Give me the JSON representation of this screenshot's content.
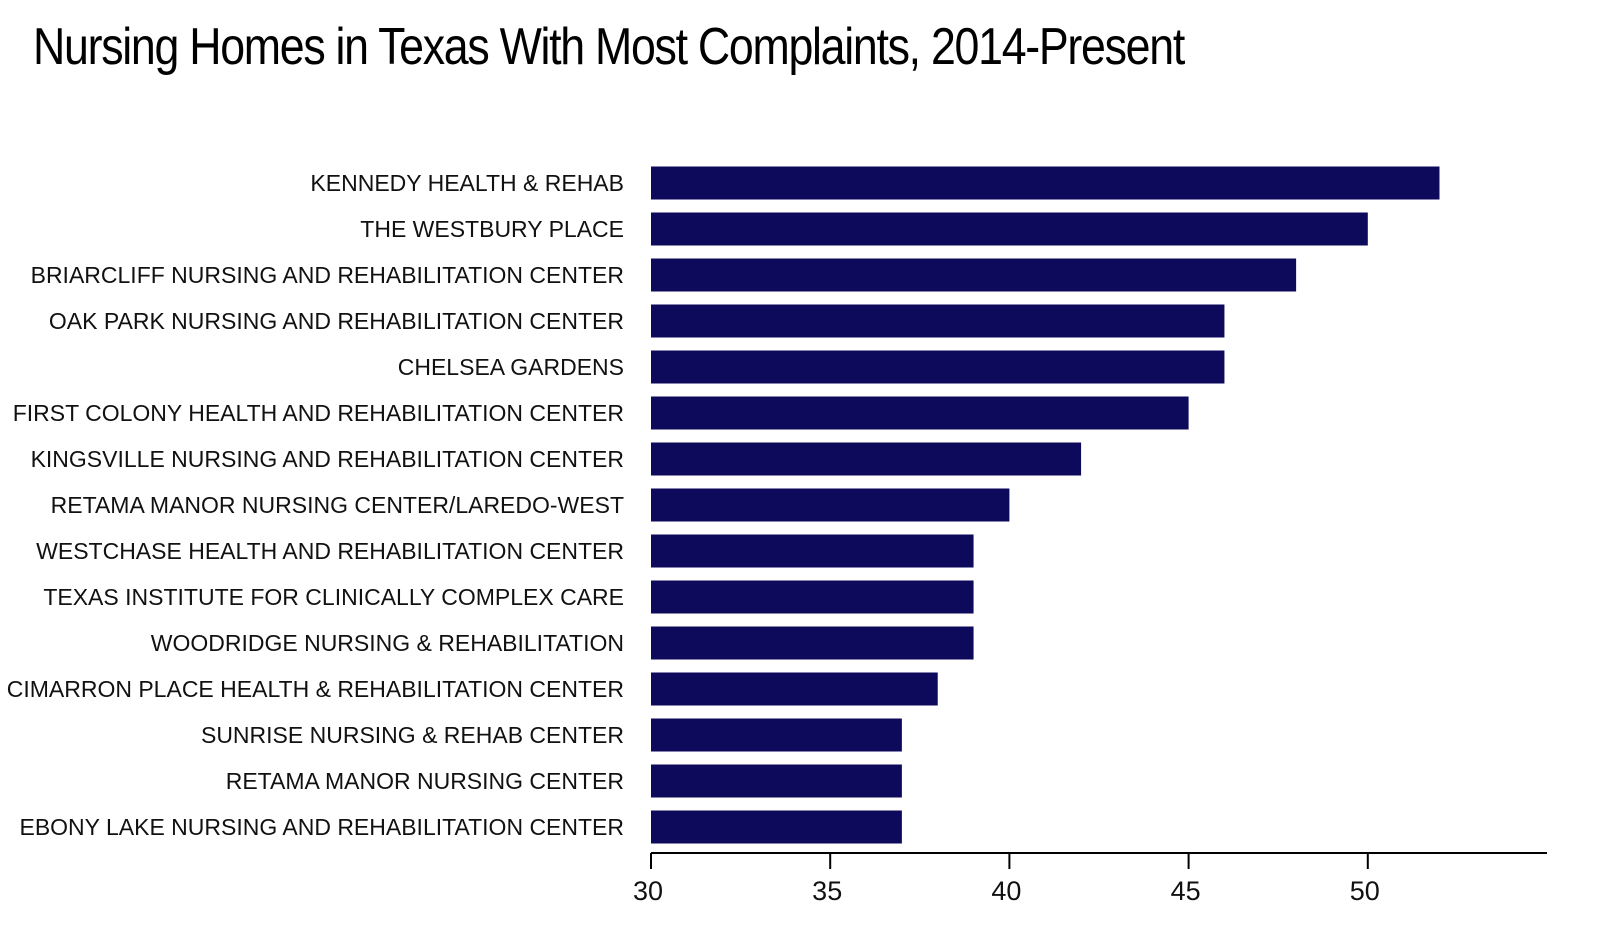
{
  "chart_data": {
    "type": "bar",
    "orientation": "horizontal",
    "title": "Nursing Homes in Texas With Most Complaints, 2014-Present",
    "xlabel": "",
    "ylabel": "",
    "categories": [
      "KENNEDY HEALTH & REHAB",
      "THE WESTBURY PLACE",
      "BRIARCLIFF NURSING AND REHABILITATION CENTER",
      "OAK PARK NURSING AND REHABILITATION CENTER",
      "CHELSEA GARDENS",
      "FIRST COLONY HEALTH AND REHABILITATION CENTER",
      "KINGSVILLE NURSING AND REHABILITATION CENTER",
      "RETAMA MANOR NURSING CENTER/LAREDO-WEST",
      "WESTCHASE HEALTH AND REHABILITATION CENTER",
      "TEXAS INSTITUTE FOR CLINICALLY COMPLEX CARE",
      "WOODRIDGE NURSING & REHABILITATION",
      "CIMARRON PLACE HEALTH & REHABILITATION CENTER",
      "SUNRISE NURSING & REHAB CENTER",
      "RETAMA MANOR NURSING CENTER",
      "EBONY LAKE NURSING AND REHABILITATION CENTER"
    ],
    "values": [
      52,
      50,
      48,
      46,
      46,
      45,
      42,
      40,
      39,
      39,
      39,
      38,
      37,
      37,
      37
    ],
    "xlim": [
      30,
      55
    ],
    "xticks": [
      "30",
      "35",
      "40",
      "45",
      "50"
    ],
    "grid": false,
    "legend": "none",
    "bar_color": "#0d0a5b",
    "axis_color": "#000000"
  }
}
